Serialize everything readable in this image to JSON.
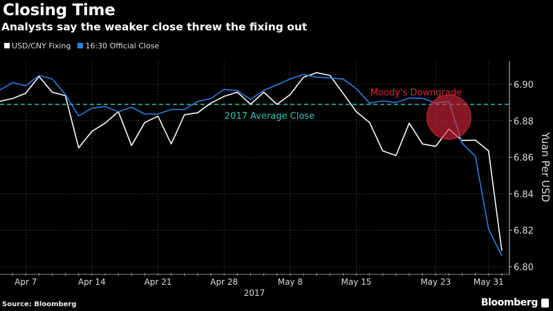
{
  "header": {
    "title": "Closing Time",
    "subtitle": "Analysts say the weaker close threw the fixing out"
  },
  "footer": {
    "source": "Source: Bloomberg",
    "brand": "Bloomberg"
  },
  "chart_data": {
    "type": "line",
    "title": "Closing Time",
    "subtitle": "Analysts say the weaker close threw the fixing out",
    "xlabel": "2017",
    "ylabel": "Yuan Per USD",
    "ylim": [
      6.795,
      6.913
    ],
    "grid": true,
    "legend_position": "top-left",
    "x": [
      "Apr 5",
      "Apr 6",
      "Apr 7",
      "Apr 10",
      "Apr 11",
      "Apr 12",
      "Apr 13",
      "Apr 14",
      "Apr 17",
      "Apr 18",
      "Apr 19",
      "Apr 20",
      "Apr 21",
      "Apr 24",
      "Apr 25",
      "Apr 26",
      "Apr 27",
      "Apr 28",
      "May 2",
      "May 3",
      "May 4",
      "May 5",
      "May 8",
      "May 9",
      "May 10",
      "May 11",
      "May 12",
      "May 15",
      "May 16",
      "May 17",
      "May 18",
      "May 19",
      "May 22",
      "May 23",
      "May 24",
      "May 25",
      "May 26",
      "May 31",
      "Jun 1"
    ],
    "x_tick_labels": [
      {
        "label": "Apr 7",
        "date": "Apr 7"
      },
      {
        "label": "Apr 14",
        "date": "Apr 14"
      },
      {
        "label": "Apr 21",
        "date": "Apr 21"
      },
      {
        "label": "Apr 28",
        "date": "Apr 28"
      },
      {
        "label": "May 8",
        "date": "May 8"
      },
      {
        "label": "May 15",
        "date": "May 15"
      },
      {
        "label": "May 23",
        "date": "May 23"
      },
      {
        "label": "May 31",
        "date": "May 31"
      }
    ],
    "y_ticks": [
      "6.80",
      "6.82",
      "6.84",
      "6.86",
      "6.88",
      "6.90"
    ],
    "series": [
      {
        "name": "USD/CNY Fixing",
        "color": "#ffffff",
        "values": [
          6.8906,
          6.8922,
          6.8951,
          6.9043,
          6.8957,
          6.8938,
          6.8652,
          6.8742,
          6.8787,
          6.885,
          6.8664,
          6.8791,
          6.8825,
          6.8673,
          6.8833,
          6.8844,
          6.8897,
          6.8934,
          6.8957,
          6.8891,
          6.8957,
          6.889,
          6.8944,
          6.9039,
          6.9064,
          6.9049,
          6.895,
          6.885,
          6.8791,
          6.8635,
          6.861,
          6.8787,
          6.8673,
          6.866,
          6.8755,
          6.8692,
          6.8694,
          6.8635,
          6.8088
        ]
      },
      {
        "name": "16:30 Official Close",
        "color": "#2f7fe0",
        "values": [
          6.8967,
          6.901,
          6.8992,
          6.9049,
          6.903,
          6.8944,
          6.8827,
          6.8869,
          6.8878,
          6.885,
          6.8875,
          6.8837,
          6.8837,
          6.8862,
          6.8862,
          6.8906,
          6.8922,
          6.8972,
          6.8966,
          6.8917,
          6.8967,
          6.8997,
          6.903,
          6.9054,
          6.9039,
          6.9035,
          6.9029,
          6.8976,
          6.8897,
          6.8909,
          6.89,
          6.8925,
          6.8923,
          6.8897,
          6.8906,
          6.8677,
          6.8606,
          6.8206,
          6.8061
        ]
      }
    ],
    "reference_line": {
      "label": "2017 Average Close",
      "value": 6.889,
      "color": "#2ec4b6"
    },
    "annotation": {
      "label": "Moody's Downgrade",
      "date": "May 24",
      "value": 6.882,
      "color": "#e0283c"
    }
  }
}
